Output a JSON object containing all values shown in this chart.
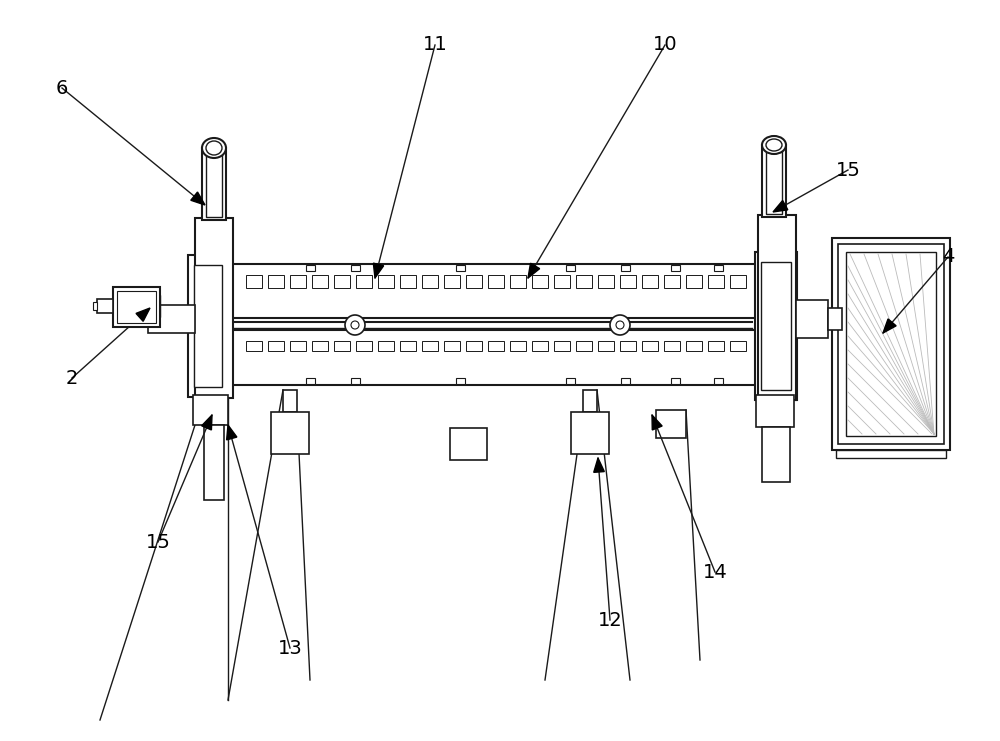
{
  "bg_color": "#ffffff",
  "line_color": "#1a1a1a",
  "figsize": [
    10.0,
    7.41
  ],
  "dpi": 100,
  "label_data": [
    [
      "6",
      62,
      88,
      205,
      205
    ],
    [
      "11",
      435,
      45,
      375,
      278
    ],
    [
      "10",
      665,
      45,
      528,
      278
    ],
    [
      "15",
      848,
      170,
      773,
      212
    ],
    [
      "2",
      72,
      378,
      150,
      308
    ],
    [
      "15",
      158,
      542,
      212,
      415
    ],
    [
      "13",
      290,
      648,
      228,
      425
    ],
    [
      "12",
      610,
      620,
      598,
      458
    ],
    [
      "14",
      715,
      572,
      652,
      415
    ],
    [
      "4",
      948,
      257,
      883,
      333
    ]
  ]
}
